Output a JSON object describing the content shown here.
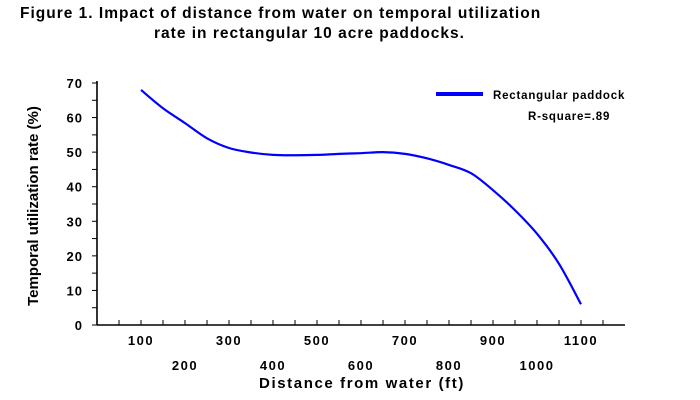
{
  "title_line1": "Figure 1.  Impact of distance from water on temporal utilization",
  "title_line2": "rate in rectangular 10 acre paddocks.",
  "chart_data": {
    "type": "line",
    "title": "Figure 1.  Impact of distance from water on temporal utilization rate in rectangular 10 acre paddocks.",
    "xlabel": "Distance from water (ft)",
    "ylabel": "Temporal utilization rate (%)",
    "xlim": [
      0,
      1200
    ],
    "ylim": [
      0,
      70
    ],
    "xticks": [
      100,
      200,
      300,
      400,
      500,
      600,
      700,
      800,
      900,
      1000,
      1100
    ],
    "yticks": [
      0,
      10,
      20,
      30,
      40,
      50,
      60,
      70
    ],
    "grid": false,
    "legend_position": "top-right",
    "annotation": "R-square=.89",
    "series": [
      {
        "name": "Rectangular paddock",
        "color": "#0000ff",
        "x": [
          100,
          150,
          200,
          250,
          300,
          350,
          400,
          450,
          500,
          550,
          600,
          650,
          700,
          750,
          800,
          850,
          900,
          950,
          1000,
          1050,
          1100
        ],
        "y": [
          68,
          62.7,
          58.4,
          54,
          51.2,
          49.9,
          49.2,
          49.1,
          49.2,
          49.5,
          49.7,
          50,
          49.5,
          48.2,
          46.3,
          43.9,
          39,
          33.2,
          26.4,
          17.7,
          6
        ]
      }
    ]
  }
}
